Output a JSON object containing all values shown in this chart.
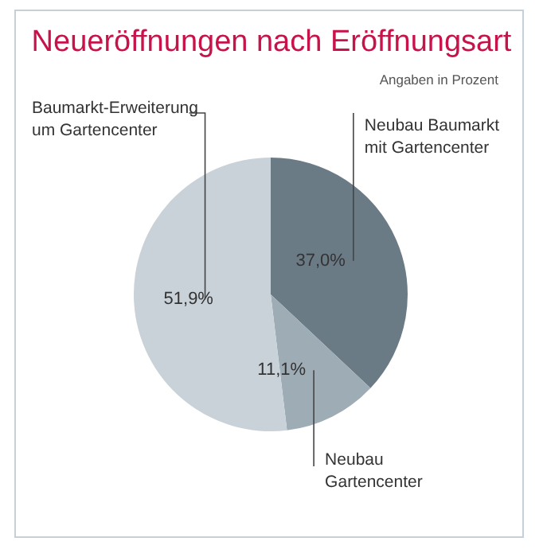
{
  "chart_data": {
    "type": "pie",
    "title": "Neueröffnungen nach Eröffnungsart",
    "subtitle": "Angaben in Prozent",
    "categories": [
      "Neubau Baumarkt mit Gartencenter",
      "Neubau Gartencenter",
      "Baumarkt-Erweiterung um Gartencenter"
    ],
    "values": [
      37.0,
      11.1,
      51.9
    ],
    "value_labels": [
      "37,0%",
      "11,1%",
      "51,9%"
    ],
    "colors": [
      "#6b7b86",
      "#9eacb5",
      "#c9d2d9"
    ],
    "legend": false
  }
}
